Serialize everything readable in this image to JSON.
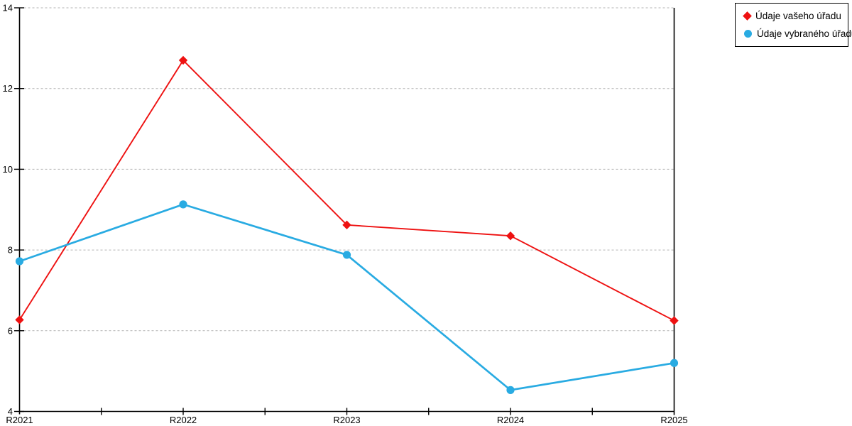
{
  "chart_data": {
    "type": "line",
    "title": "",
    "xlabel": "",
    "ylabel": "",
    "categories": [
      "R2021",
      "R2022",
      "R2023",
      "R2024",
      "R2025"
    ],
    "series": [
      {
        "name": "Údaje vašeho úřadu",
        "marker": "diamond",
        "color": "#ee1111",
        "values": [
          6.27,
          12.7,
          8.62,
          8.35,
          6.25
        ]
      },
      {
        "name": "Údaje vybraného úřadu",
        "marker": "circle",
        "color": "#29abe2",
        "values": [
          7.72,
          9.13,
          7.88,
          4.53,
          5.2
        ]
      }
    ],
    "ylim": [
      4,
      14
    ],
    "yticks": [
      4,
      6,
      8,
      10,
      12,
      14
    ],
    "grid": "horizontal-dashed",
    "grid_color": "#b3b3b3",
    "axis_color": "#000000",
    "legend_position": "top-right",
    "background_color": "#ffffff"
  }
}
